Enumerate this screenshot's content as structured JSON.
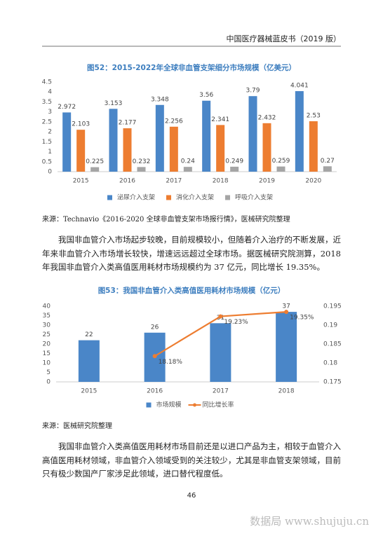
{
  "header": {
    "title": "中国医疗器械蓝皮书（2019 版）"
  },
  "chart_data": [
    {
      "type": "bar",
      "title": "图52：2015-2022年全球非血管支架细分市场规模（亿美元）",
      "categories": [
        "2015",
        "2016",
        "2017",
        "2018",
        "2019",
        "2020"
      ],
      "series": [
        {
          "name": "泌尿介入支架",
          "color": "#4a86c8",
          "values": [
            2.972,
            3.153,
            3.348,
            3.56,
            3.79,
            4.041
          ]
        },
        {
          "name": "消化介入支架",
          "color": "#ed7d31",
          "values": [
            2.103,
            2.177,
            2.256,
            2.341,
            2.432,
            2.53
          ]
        },
        {
          "name": "呼吸介入支架",
          "color": "#a5a5a5",
          "values": [
            0.225,
            0.232,
            0.24,
            0.249,
            0.259,
            0.27
          ]
        }
      ],
      "ylim": [
        0,
        4.5
      ],
      "yticks": [
        0,
        0.5,
        1,
        1.5,
        2,
        2.5,
        3,
        3.5,
        4,
        4.5
      ],
      "grid": false,
      "legend": "bottom"
    },
    {
      "type": "bar",
      "title": "图53：我国非血管介入类高值医用耗材市场规模（亿元）",
      "categories": [
        "2015",
        "2016",
        "2017",
        "2018"
      ],
      "series": [
        {
          "name": "市场规模",
          "color": "#4a86c8",
          "type": "bar",
          "values": [
            22,
            26,
            31,
            37
          ]
        },
        {
          "name": "同比增长率",
          "color": "#ed7d31",
          "type": "line",
          "axis": "y2",
          "values": [
            null,
            0.1818,
            0.1923,
            0.1935
          ],
          "value_labels": [
            null,
            "18.18%",
            "19.23%",
            "19.35%"
          ]
        }
      ],
      "ylim": [
        0,
        40
      ],
      "yticks": [
        0,
        5,
        10,
        15,
        20,
        25,
        30,
        35,
        40
      ],
      "y2lim": [
        0.175,
        0.195
      ],
      "y2ticks": [
        0.175,
        0.18,
        0.185,
        0.19,
        0.195
      ],
      "grid": false,
      "legend": "bottom"
    }
  ],
  "sources": [
    "来源：Technavio《2016-2020 全球非血管支架市场报行情》，医械研究院整理",
    "来源：医械研究院整理"
  ],
  "paragraphs": [
    "我国非血管介入市场起步较晚，目前规模较小，但随着介入治疗的不断发展，近年来非血管介入市场增长较快，增速远远超过全球市场。据医械研究院测算，2018 年我国非血管介入类高值医用耗材市场规模约为 37 亿元，同比增长 19.35%。",
    "我国非血管介入类高值医用耗材市场目前还是以进口产品为主，相较于血管介入高值医用耗材领域，非血管介入领域受到的关注较少，尤其是非血管支架领域，目前只有极少数国产厂家涉足此领域，进口替代程度低。"
  ],
  "page_number": "46",
  "watermark": "数据局 www.shujuju.cn"
}
